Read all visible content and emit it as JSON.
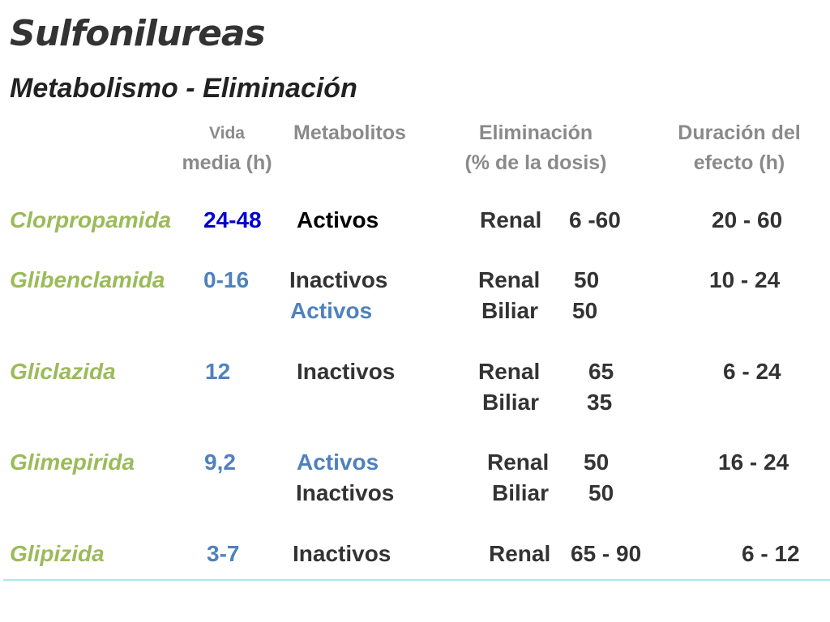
{
  "title": "Sulfonilureas",
  "subtitle": "Metabolismo - Eliminación",
  "headers": {
    "half_life_1": "Vida",
    "half_life_2": "media (h)",
    "metabolites": "Metabolitos",
    "elimination_1": "Eliminación",
    "elimination_2": "(% de la dosis)",
    "duration_1": "Duración del",
    "duration_2": "efecto (h)"
  },
  "rows": [
    {
      "drug": "Clorpropamida",
      "half_life": "24-48",
      "metabolites": [
        "Activos"
      ],
      "routes": [
        {
          "route": "Renal",
          "pct": "6 -60"
        }
      ],
      "duration": "20 - 60"
    },
    {
      "drug": "Glibenclamida",
      "half_life": "0-16",
      "metabolites": [
        "Inactivos",
        "Activos"
      ],
      "routes": [
        {
          "route": "Renal",
          "pct": "50"
        },
        {
          "route": "Biliar",
          "pct": "50"
        }
      ],
      "duration": "10 - 24"
    },
    {
      "drug": "Gliclazida",
      "half_life": "12",
      "metabolites": [
        "Inactivos"
      ],
      "routes": [
        {
          "route": "Renal",
          "pct": "65"
        },
        {
          "route": "Biliar",
          "pct": "35"
        }
      ],
      "duration": "6 - 24"
    },
    {
      "drug": "Glimepirida",
      "half_life": "9,2",
      "metabolites": [
        "Activos",
        "Inactivos"
      ],
      "routes": [
        {
          "route": "Renal",
          "pct": "50"
        },
        {
          "route": "Biliar",
          "pct": "50"
        }
      ],
      "duration": "16 - 24"
    },
    {
      "drug": "Glipizida",
      "half_life": "3-7",
      "metabolites": [
        "Inactivos"
      ],
      "routes": [
        {
          "route": "Renal",
          "pct": "65 - 90"
        }
      ],
      "duration": "6 - 12"
    }
  ],
  "colors": {
    "drug_name": "#9bbb59",
    "half_life": "#4f81bd",
    "half_life_emphasis": "#0000cc",
    "active_metabolites": "#4f81bd",
    "header_text": "#8a8a8a",
    "body_text": "#333333",
    "divider": "#a6ece8"
  }
}
